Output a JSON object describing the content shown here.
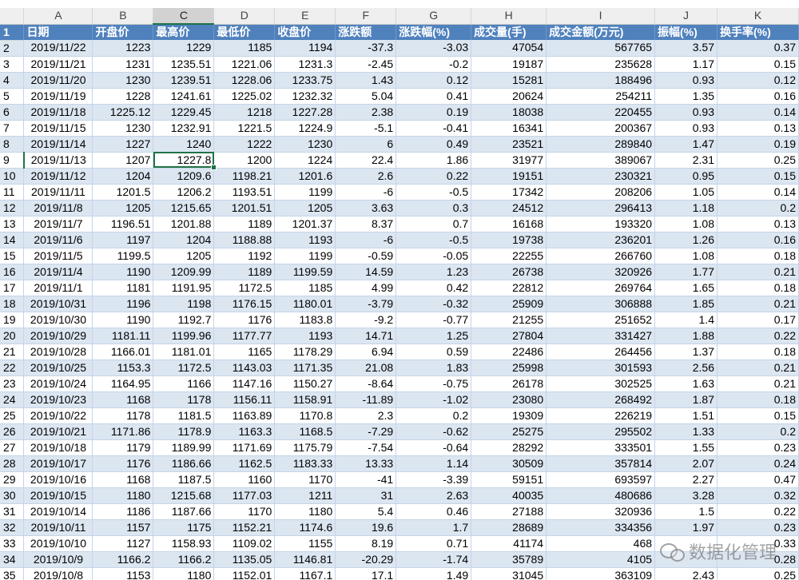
{
  "columns": [
    "A",
    "B",
    "C",
    "D",
    "E",
    "F",
    "G",
    "H",
    "I",
    "J",
    "K"
  ],
  "selected_column": "C",
  "selected_row": 9,
  "headers": [
    "日期",
    "开盘价",
    "最高价",
    "最低价",
    "收盘价",
    "涨跌额",
    "涨跌幅(%)",
    "成交量(手)",
    "成交金额(万元)",
    "振幅(%)",
    "换手率(%)"
  ],
  "rows": [
    [
      "2019/11/22",
      "1223",
      "1229",
      "1185",
      "1194",
      "-37.3",
      "-3.03",
      "47054",
      "567765",
      "3.57",
      "0.37"
    ],
    [
      "2019/11/21",
      "1231",
      "1235.51",
      "1221.06",
      "1231.3",
      "-2.45",
      "-0.2",
      "19187",
      "235628",
      "1.17",
      "0.15"
    ],
    [
      "2019/11/20",
      "1230",
      "1239.51",
      "1228.06",
      "1233.75",
      "1.43",
      "0.12",
      "15281",
      "188496",
      "0.93",
      "0.12"
    ],
    [
      "2019/11/19",
      "1228",
      "1241.61",
      "1225.02",
      "1232.32",
      "5.04",
      "0.41",
      "20624",
      "254211",
      "1.35",
      "0.16"
    ],
    [
      "2019/11/18",
      "1225.12",
      "1229.45",
      "1218",
      "1227.28",
      "2.38",
      "0.19",
      "18038",
      "220455",
      "0.93",
      "0.14"
    ],
    [
      "2019/11/15",
      "1230",
      "1232.91",
      "1221.5",
      "1224.9",
      "-5.1",
      "-0.41",
      "16341",
      "200367",
      "0.93",
      "0.13"
    ],
    [
      "2019/11/14",
      "1227",
      "1240",
      "1222",
      "1230",
      "6",
      "0.49",
      "23521",
      "289840",
      "1.47",
      "0.19"
    ],
    [
      "2019/11/13",
      "1207",
      "1227.8",
      "1200",
      "1224",
      "22.4",
      "1.86",
      "31977",
      "389067",
      "2.31",
      "0.25"
    ],
    [
      "2019/11/12",
      "1204",
      "1209.6",
      "1198.21",
      "1201.6",
      "2.6",
      "0.22",
      "19151",
      "230321",
      "0.95",
      "0.15"
    ],
    [
      "2019/11/11",
      "1201.5",
      "1206.2",
      "1193.51",
      "1199",
      "-6",
      "-0.5",
      "17342",
      "208206",
      "1.05",
      "0.14"
    ],
    [
      "2019/11/8",
      "1205",
      "1215.65",
      "1201.51",
      "1205",
      "3.63",
      "0.3",
      "24512",
      "296413",
      "1.18",
      "0.2"
    ],
    [
      "2019/11/7",
      "1196.51",
      "1201.88",
      "1189",
      "1201.37",
      "8.37",
      "0.7",
      "16168",
      "193320",
      "1.08",
      "0.13"
    ],
    [
      "2019/11/6",
      "1197",
      "1204",
      "1188.88",
      "1193",
      "-6",
      "-0.5",
      "19738",
      "236201",
      "1.26",
      "0.16"
    ],
    [
      "2019/11/5",
      "1199.5",
      "1205",
      "1192",
      "1199",
      "-0.59",
      "-0.05",
      "22255",
      "266760",
      "1.08",
      "0.18"
    ],
    [
      "2019/11/4",
      "1190",
      "1209.99",
      "1189",
      "1199.59",
      "14.59",
      "1.23",
      "26738",
      "320926",
      "1.77",
      "0.21"
    ],
    [
      "2019/11/1",
      "1181",
      "1191.95",
      "1172.5",
      "1185",
      "4.99",
      "0.42",
      "22812",
      "269764",
      "1.65",
      "0.18"
    ],
    [
      "2019/10/31",
      "1196",
      "1198",
      "1176.15",
      "1180.01",
      "-3.79",
      "-0.32",
      "25909",
      "306888",
      "1.85",
      "0.21"
    ],
    [
      "2019/10/30",
      "1190",
      "1192.7",
      "1176",
      "1183.8",
      "-9.2",
      "-0.77",
      "21255",
      "251652",
      "1.4",
      "0.17"
    ],
    [
      "2019/10/29",
      "1181.11",
      "1199.96",
      "1177.77",
      "1193",
      "14.71",
      "1.25",
      "27804",
      "331427",
      "1.88",
      "0.22"
    ],
    [
      "2019/10/28",
      "1166.01",
      "1181.01",
      "1165",
      "1178.29",
      "6.94",
      "0.59",
      "22486",
      "264456",
      "1.37",
      "0.18"
    ],
    [
      "2019/10/25",
      "1153.3",
      "1172.5",
      "1143.03",
      "1171.35",
      "21.08",
      "1.83",
      "25998",
      "301593",
      "2.56",
      "0.21"
    ],
    [
      "2019/10/24",
      "1164.95",
      "1166",
      "1147.16",
      "1150.27",
      "-8.64",
      "-0.75",
      "26178",
      "302525",
      "1.63",
      "0.21"
    ],
    [
      "2019/10/23",
      "1168",
      "1178",
      "1156.11",
      "1158.91",
      "-11.89",
      "-1.02",
      "23080",
      "268492",
      "1.87",
      "0.18"
    ],
    [
      "2019/10/22",
      "1178",
      "1181.5",
      "1163.89",
      "1170.8",
      "2.3",
      "0.2",
      "19309",
      "226219",
      "1.51",
      "0.15"
    ],
    [
      "2019/10/21",
      "1171.86",
      "1178.9",
      "1163.3",
      "1168.5",
      "-7.29",
      "-0.62",
      "25275",
      "295502",
      "1.33",
      "0.2"
    ],
    [
      "2019/10/18",
      "1179",
      "1189.99",
      "1171.69",
      "1175.79",
      "-7.54",
      "-0.64",
      "28292",
      "333501",
      "1.55",
      "0.23"
    ],
    [
      "2019/10/17",
      "1176",
      "1186.66",
      "1162.5",
      "1183.33",
      "13.33",
      "1.14",
      "30509",
      "357814",
      "2.07",
      "0.24"
    ],
    [
      "2019/10/16",
      "1168",
      "1187.5",
      "1160",
      "1170",
      "-41",
      "-3.39",
      "59151",
      "693597",
      "2.27",
      "0.47"
    ],
    [
      "2019/10/15",
      "1180",
      "1215.68",
      "1177.03",
      "1211",
      "31",
      "2.63",
      "40035",
      "480686",
      "3.28",
      "0.32"
    ],
    [
      "2019/10/14",
      "1186",
      "1187.66",
      "1170",
      "1180",
      "5.4",
      "0.46",
      "27188",
      "320936",
      "1.5",
      "0.22"
    ],
    [
      "2019/10/11",
      "1157",
      "1175",
      "1152.21",
      "1174.6",
      "19.6",
      "1.7",
      "28689",
      "334356",
      "1.97",
      "0.23"
    ],
    [
      "2019/10/10",
      "1127",
      "1158.93",
      "1109.02",
      "1155",
      "8.19",
      "0.71",
      "41174",
      "468",
      "",
      "0.33"
    ],
    [
      "2019/10/9",
      "1166.2",
      "1166.2",
      "1135.05",
      "1146.81",
      "-20.29",
      "-1.74",
      "35789",
      "4105",
      "",
      "0.28"
    ],
    [
      "2019/10/8",
      "1153",
      "1180",
      "1152.01",
      "1167.1",
      "17.1",
      "1.49",
      "31045",
      "363109",
      "2.43",
      "0.25"
    ]
  ],
  "watermark": {
    "text": "数据化管理",
    "icon": "wechat-icon"
  },
  "colors": {
    "header_bg": "#4f81bd",
    "band_bg": "#dce6f1",
    "selection": "#217346"
  }
}
